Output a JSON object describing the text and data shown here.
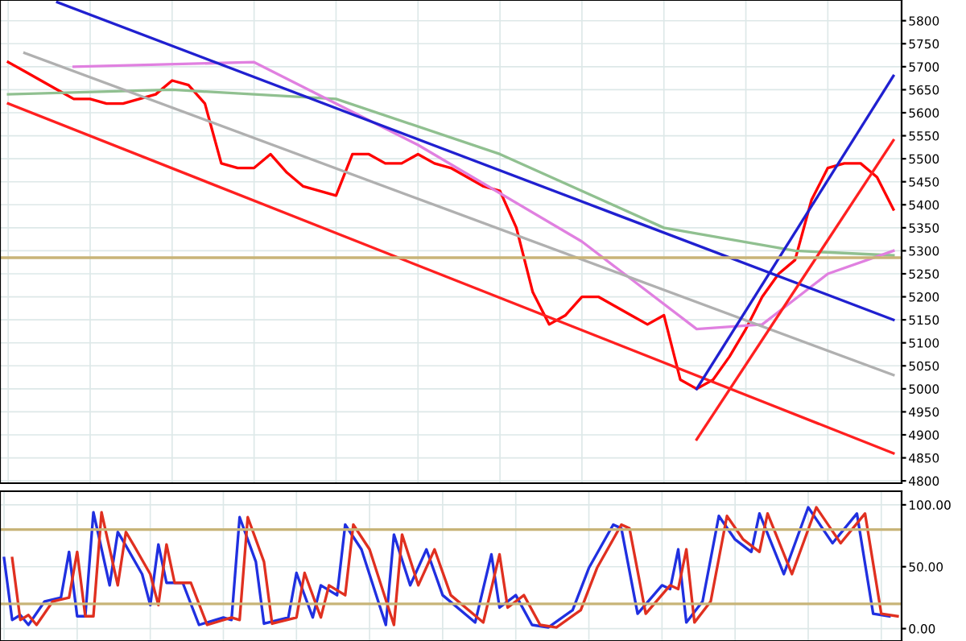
{
  "chart_data": [
    {
      "type": "line",
      "categories": [
        null,
        null,
        null,
        null,
        null,
        null,
        null,
        null,
        null,
        null,
        null,
        null,
        null,
        null,
        null,
        null,
        null,
        null,
        null,
        null,
        null,
        null,
        null,
        null,
        null,
        null,
        null,
        null,
        null,
        null,
        null,
        null,
        null,
        null,
        null,
        null,
        null,
        null,
        null,
        null,
        null,
        null,
        null,
        null,
        null,
        null,
        null,
        null,
        null,
        null,
        null,
        null,
        null,
        null,
        null
      ],
      "series": [
        {
          "color": "#ff0000",
          "values": [
            5710,
            5690,
            5670,
            5650,
            5630,
            5630,
            5620,
            5620,
            5630,
            5640,
            5670,
            5660,
            5620,
            5490,
            5480,
            5480,
            5510,
            5470,
            5440,
            5430,
            5420,
            5510,
            5510,
            5490,
            5490,
            5510,
            5490,
            5480,
            5460,
            5440,
            5430,
            5350,
            5210,
            5140,
            5160,
            5200,
            5200,
            5180,
            5160,
            5140,
            5160,
            5020,
            5000,
            5020,
            5070,
            5130,
            5200,
            5250,
            5280,
            5410,
            5480,
            5490,
            5490,
            5460,
            5390
          ]
        },
        {
          "color": "#90c090",
          "values": [
            5640,
            null,
            null,
            null,
            null,
            null,
            null,
            null,
            null,
            null,
            5650,
            null,
            null,
            null,
            null,
            null,
            null,
            null,
            null,
            null,
            5630,
            null,
            null,
            null,
            null,
            null,
            null,
            null,
            null,
            null,
            5510,
            null,
            null,
            null,
            null,
            null,
            null,
            null,
            null,
            null,
            5350,
            null,
            null,
            null,
            null,
            null,
            null,
            null,
            5300,
            null,
            null,
            null,
            null,
            null,
            5290
          ]
        },
        {
          "color": "#e080e0",
          "values": [
            null,
            null,
            null,
            null,
            5700,
            null,
            null,
            null,
            null,
            null,
            null,
            null,
            null,
            null,
            null,
            5710,
            null,
            null,
            null,
            null,
            null,
            null,
            null,
            null,
            null,
            5530,
            null,
            null,
            null,
            null,
            null,
            null,
            null,
            null,
            null,
            5320,
            null,
            null,
            null,
            null,
            null,
            null,
            5130,
            null,
            null,
            null,
            5140,
            null,
            null,
            null,
            5250,
            null,
            null,
            null,
            5300
          ]
        },
        {
          "color": "#b0b0b0",
          "values": [
            null,
            5730,
            null,
            null,
            null,
            null,
            null,
            null,
            null,
            null,
            null,
            null,
            null,
            null,
            null,
            null,
            null,
            null,
            null,
            null,
            null,
            null,
            null,
            null,
            null,
            null,
            null,
            null,
            null,
            null,
            null,
            null,
            null,
            null,
            null,
            null,
            null,
            null,
            null,
            null,
            null,
            null,
            null,
            null,
            null,
            null,
            null,
            null,
            null,
            null,
            null,
            null,
            null,
            null,
            5030
          ]
        },
        {
          "color": "#2020d0",
          "values": [
            null,
            null,
            null,
            5840,
            null,
            null,
            null,
            null,
            null,
            null,
            null,
            null,
            null,
            null,
            null,
            null,
            null,
            null,
            null,
            null,
            null,
            null,
            null,
            null,
            null,
            null,
            null,
            null,
            null,
            null,
            null,
            null,
            null,
            null,
            null,
            null,
            null,
            null,
            null,
            null,
            null,
            null,
            null,
            null,
            null,
            null,
            null,
            null,
            null,
            null,
            null,
            null,
            null,
            null,
            5150
          ]
        },
        {
          "color": "#ff2020",
          "values": [
            5620,
            null,
            null,
            null,
            null,
            null,
            null,
            null,
            null,
            null,
            null,
            null,
            null,
            null,
            null,
            null,
            null,
            null,
            null,
            null,
            null,
            null,
            null,
            null,
            null,
            null,
            null,
            null,
            null,
            null,
            null,
            null,
            null,
            null,
            null,
            null,
            null,
            null,
            null,
            null,
            null,
            null,
            null,
            null,
            null,
            null,
            null,
            null,
            null,
            null,
            null,
            null,
            null,
            null,
            4860
          ]
        },
        {
          "color": "#2020d0",
          "values": [
            null,
            null,
            null,
            null,
            null,
            null,
            null,
            null,
            null,
            null,
            null,
            null,
            null,
            null,
            null,
            null,
            null,
            null,
            null,
            null,
            null,
            null,
            null,
            null,
            null,
            null,
            null,
            null,
            null,
            null,
            null,
            null,
            null,
            null,
            null,
            null,
            null,
            null,
            null,
            null,
            null,
            null,
            5000,
            null,
            null,
            null,
            null,
            null,
            null,
            null,
            null,
            null,
            null,
            null,
            5680
          ]
        },
        {
          "color": "#ff2020",
          "values": [
            null,
            null,
            null,
            null,
            null,
            null,
            null,
            null,
            null,
            null,
            null,
            null,
            null,
            null,
            null,
            null,
            null,
            null,
            null,
            null,
            null,
            null,
            null,
            null,
            null,
            null,
            null,
            null,
            null,
            null,
            null,
            null,
            null,
            null,
            null,
            null,
            null,
            null,
            null,
            null,
            null,
            null,
            4890,
            null,
            null,
            null,
            null,
            null,
            null,
            null,
            null,
            null,
            null,
            null,
            5540
          ]
        }
      ],
      "ylim": [
        4795,
        5845
      ],
      "yticks": [
        4800,
        4850,
        4900,
        4950,
        5000,
        5050,
        5100,
        5150,
        5200,
        5250,
        5300,
        5350,
        5400,
        5450,
        5500,
        5550,
        5600,
        5650,
        5700,
        5750,
        5800
      ],
      "ref_lines": [
        {
          "axis": "y",
          "value": 5285,
          "color": "#c8b478"
        }
      ],
      "grid": true,
      "tick_labels": "y"
    },
    {
      "type": "line",
      "categories": [
        null,
        null,
        null,
        null,
        null,
        null,
        null,
        null,
        null,
        null,
        null,
        null,
        null,
        null,
        null,
        null,
        null,
        null,
        null,
        null,
        null,
        null,
        null,
        null,
        null,
        null,
        null,
        null,
        null,
        null,
        null,
        null,
        null,
        null,
        null,
        null,
        null,
        null,
        null,
        null,
        null,
        null,
        null,
        null,
        null,
        null,
        null,
        null,
        null,
        null,
        null,
        null,
        null,
        null,
        null,
        null,
        null,
        null,
        null,
        null,
        null,
        null,
        null,
        null,
        null,
        null,
        null,
        null,
        null,
        null,
        null,
        null,
        null,
        null,
        null,
        null,
        null,
        null,
        null,
        null,
        null,
        null,
        null,
        null,
        null,
        null,
        null,
        null,
        null,
        null,
        null,
        null,
        null,
        null,
        null,
        null,
        null,
        null,
        null,
        null,
        null,
        null,
        null,
        null,
        null,
        null,
        null,
        null,
        null,
        null,
        null
      ],
      "series": [
        {
          "color": "#2030e0",
          "values": [
            57,
            7,
            11,
            3,
            null,
            22,
            null,
            25,
            62,
            10,
            10,
            94,
            null,
            35,
            78,
            67,
            null,
            44,
            19,
            68,
            37,
            null,
            37,
            null,
            3,
            null,
            null,
            9,
            7,
            90,
            null,
            54,
            4,
            null,
            null,
            9,
            45,
            null,
            9,
            35,
            null,
            27,
            84,
            null,
            64,
            null,
            null,
            3,
            76,
            null,
            35,
            null,
            64,
            null,
            27,
            null,
            null,
            null,
            5,
            null,
            60,
            17,
            null,
            27,
            null,
            3,
            null,
            1,
            null,
            null,
            15,
            null,
            49,
            null,
            null,
            84,
            81,
            null,
            12,
            null,
            null,
            35,
            32,
            64,
            5,
            null,
            22,
            null,
            91,
            null,
            72,
            null,
            62,
            93,
            null,
            null,
            44,
            null,
            null,
            98,
            null,
            null,
            69,
            null,
            null,
            93,
            null,
            12,
            null,
            10,
            null
          ]
        },
        {
          "color": "#e03020",
          "values": [
            null,
            57,
            7,
            11,
            3,
            null,
            22,
            null,
            25,
            62,
            10,
            10,
            94,
            null,
            35,
            78,
            67,
            null,
            44,
            19,
            68,
            37,
            null,
            37,
            null,
            3,
            null,
            null,
            9,
            7,
            90,
            null,
            54,
            4,
            null,
            null,
            9,
            45,
            null,
            9,
            35,
            null,
            27,
            84,
            null,
            64,
            null,
            null,
            3,
            76,
            null,
            35,
            null,
            64,
            null,
            27,
            null,
            null,
            null,
            5,
            null,
            60,
            17,
            null,
            27,
            null,
            3,
            null,
            1,
            null,
            null,
            15,
            null,
            49,
            null,
            null,
            84,
            81,
            null,
            12,
            null,
            null,
            35,
            32,
            64,
            5,
            null,
            22,
            null,
            91,
            null,
            72,
            null,
            62,
            93,
            null,
            null,
            44,
            null,
            null,
            98,
            null,
            null,
            69,
            null,
            null,
            93,
            null,
            12,
            null,
            10
          ]
        }
      ],
      "ylim": [
        -10,
        111
      ],
      "yticks": [
        {
          "value": 0,
          "label": "0.00"
        },
        {
          "value": 50,
          "label": "50.00"
        },
        {
          "value": 100,
          "label": "100.00"
        }
      ],
      "ref_lines": [
        {
          "axis": "y",
          "value": 80,
          "color": "#c8b478"
        },
        {
          "axis": "y",
          "value": 20,
          "color": "#c8b478"
        }
      ],
      "grid": true,
      "tick_labels": "y"
    }
  ]
}
